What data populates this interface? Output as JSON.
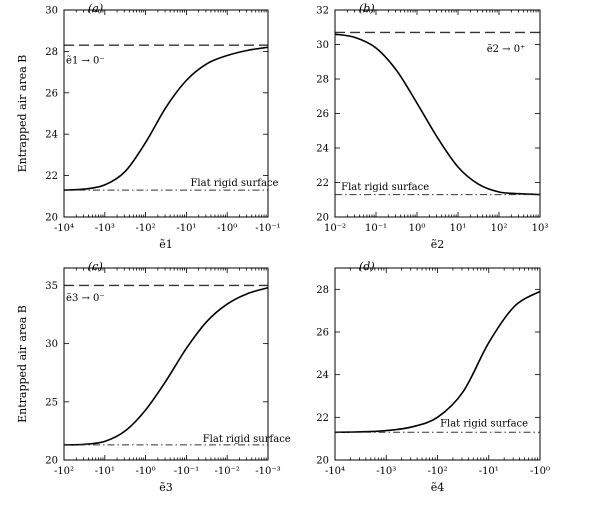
{
  "chart_data": [
    {
      "type": "line",
      "panel_label": "(a)",
      "ylabel": "Entrapped air area B",
      "xlabel": "ẽ1",
      "x_scale": "log",
      "x_ticks": [
        "-10⁴",
        "-10³",
        "-10²",
        "-10¹",
        "-10⁰",
        "-10⁻¹"
      ],
      "ylim": [
        20,
        30
      ],
      "y_ticks": [
        "20",
        "22",
        "24",
        "26",
        "28",
        "30"
      ],
      "series": [
        {
          "style": "solid",
          "x_decade": [
            0,
            0.5,
            1,
            1.5,
            2,
            2.5,
            3,
            3.5,
            4,
            4.5,
            5
          ],
          "values": [
            21.3,
            21.35,
            21.55,
            22.2,
            23.6,
            25.3,
            26.6,
            27.4,
            27.8,
            28.05,
            28.2
          ]
        },
        {
          "style": "dashed",
          "x_decade": [
            0,
            5
          ],
          "values": [
            28.3,
            28.3
          ]
        },
        {
          "style": "dashdot",
          "x_decade": [
            0,
            5
          ],
          "values": [
            21.3,
            21.3
          ]
        }
      ],
      "annotations": [
        {
          "text": "ẽ1 → 0⁻",
          "x_decade": 0.05,
          "y": 27.6
        },
        {
          "text": "Flat rigid surface",
          "x_decade": 3.1,
          "y": 21.7
        }
      ]
    },
    {
      "type": "line",
      "panel_label": "(b)",
      "ylabel": "",
      "xlabel": "ẽ2",
      "x_scale": "log",
      "x_ticks": [
        "10⁻²",
        "10⁻¹",
        "10⁰",
        "10¹",
        "10²",
        "10³"
      ],
      "ylim": [
        20,
        32
      ],
      "y_ticks": [
        "20",
        "22",
        "24",
        "26",
        "28",
        "30",
        "32"
      ],
      "series": [
        {
          "style": "solid",
          "x_decade": [
            0,
            0.5,
            1,
            1.5,
            2,
            2.5,
            3,
            3.5,
            4,
            4.5,
            5
          ],
          "values": [
            30.6,
            30.4,
            29.8,
            28.5,
            26.6,
            24.6,
            22.9,
            21.9,
            21.45,
            21.35,
            21.3
          ]
        },
        {
          "style": "dashed",
          "x_decade": [
            0,
            5
          ],
          "values": [
            30.7,
            30.7
          ]
        },
        {
          "style": "dashdot",
          "x_decade": [
            0,
            5
          ],
          "values": [
            21.3,
            21.3
          ]
        }
      ],
      "annotations": [
        {
          "text": "ẽ2 → 0⁺",
          "x_decade": 3.7,
          "y": 29.8
        },
        {
          "text": "Flat rigid surface",
          "x_decade": 0.15,
          "y": 21.8
        }
      ]
    },
    {
      "type": "line",
      "panel_label": "(c)",
      "ylabel": "Entrapped air area B",
      "xlabel": "ẽ3",
      "x_scale": "log",
      "x_ticks": [
        "-10²",
        "-10¹",
        "-10⁰",
        "-10⁻¹",
        "-10⁻²",
        "-10⁻³"
      ],
      "ylim": [
        20,
        36.5
      ],
      "y_ticks": [
        "20",
        "25",
        "30",
        "35"
      ],
      "series": [
        {
          "style": "solid",
          "x_decade": [
            0,
            0.5,
            1,
            1.5,
            2,
            2.5,
            3,
            3.5,
            4,
            4.5,
            5
          ],
          "values": [
            21.3,
            21.35,
            21.6,
            22.5,
            24.3,
            26.8,
            29.6,
            31.9,
            33.4,
            34.3,
            34.8
          ]
        },
        {
          "style": "dashed",
          "x_decade": [
            0,
            5
          ],
          "values": [
            35,
            35
          ]
        },
        {
          "style": "dashdot",
          "x_decade": [
            0,
            5
          ],
          "values": [
            21.3,
            21.3
          ]
        }
      ],
      "annotations": [
        {
          "text": "ẽ3 → 0⁻",
          "x_decade": 0.05,
          "y": 34.0
        },
        {
          "text": "Flat rigid surface",
          "x_decade": 3.4,
          "y": 21.9
        }
      ]
    },
    {
      "type": "line",
      "panel_label": "(d)",
      "ylabel": "",
      "xlabel": "ẽ4",
      "x_scale": "log",
      "x_ticks": [
        "-10⁴",
        "-10³",
        "-10²",
        "-10¹",
        "-10⁰"
      ],
      "ylim": [
        20,
        29
      ],
      "y_ticks": [
        "20",
        "22",
        "24",
        "26",
        "28"
      ],
      "series": [
        {
          "style": "solid",
          "x_decade": [
            0,
            0.5,
            1,
            1.5,
            2,
            2.5,
            3,
            3.5,
            4
          ],
          "values": [
            21.3,
            21.32,
            21.38,
            21.55,
            22.0,
            23.2,
            25.5,
            27.2,
            27.9
          ]
        },
        {
          "style": "dashdot",
          "x_decade": [
            0,
            4
          ],
          "values": [
            21.3,
            21.3
          ]
        }
      ],
      "annotations": [
        {
          "text": "Flat rigid surface",
          "x_decade": 2.05,
          "y": 21.75
        }
      ]
    }
  ]
}
